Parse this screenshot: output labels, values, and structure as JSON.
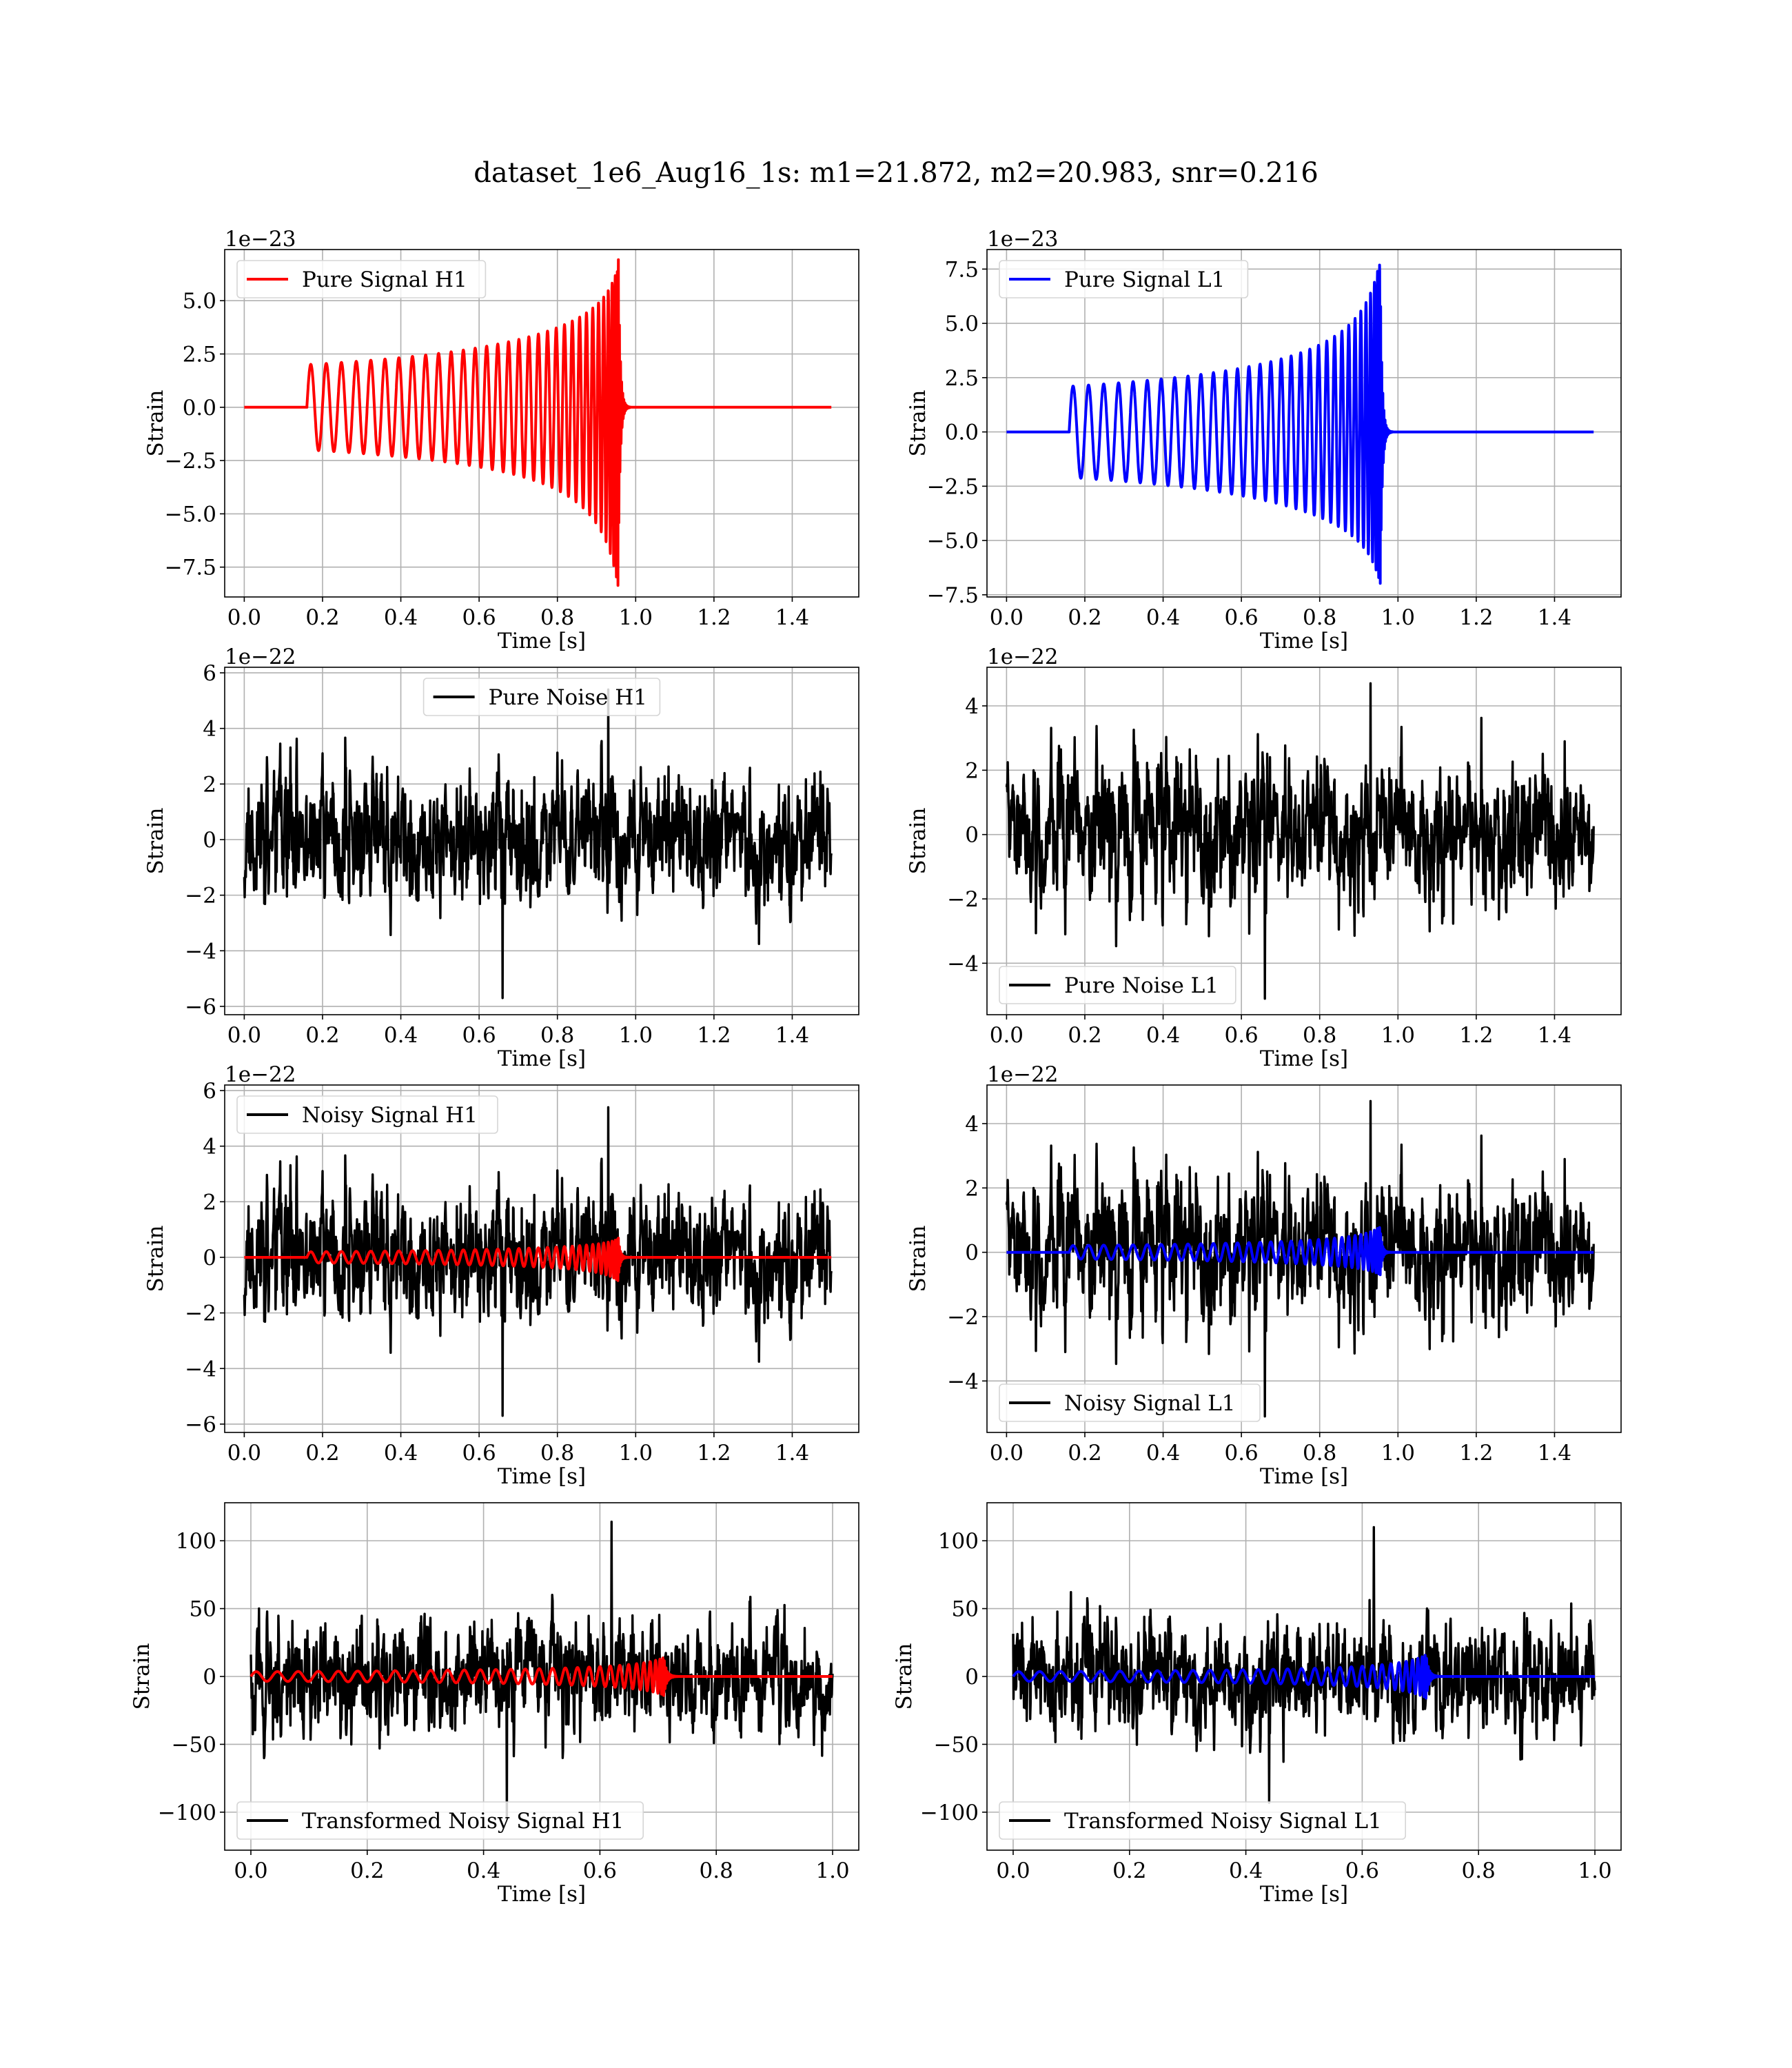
{
  "title": "dataset_1e6_Aug16_1s: m1=21.872, m2=20.983, snr=0.216",
  "colors": {
    "h1": "#ff0000",
    "l1": "#0000ff",
    "noise": "#000000",
    "grid": "#b0b0b0",
    "axes": "#000000"
  },
  "chart_data": [
    {
      "id": "pure-signal-h1",
      "type": "line",
      "xlabel": "Time [s]",
      "ylabel": "Strain",
      "offset": "1e−23",
      "xlim": [
        -0.05,
        1.57
      ],
      "ylim": [
        -8.9,
        7.4
      ],
      "xticks": [
        0.0,
        0.2,
        0.4,
        0.6,
        0.8,
        1.0,
        1.2,
        1.4
      ],
      "xticklabels": [
        "0.0",
        "0.2",
        "0.4",
        "0.6",
        "0.8",
        "1.0",
        "1.2",
        "1.4"
      ],
      "yticks": [
        -7.5,
        -5.0,
        -2.5,
        0.0,
        2.5,
        5.0
      ],
      "yticklabels": [
        "−7.5",
        "−5.0",
        "−2.5",
        "0.0",
        "2.5",
        "5.0"
      ],
      "legend": {
        "loc": "upper-left"
      },
      "grid": true,
      "series": [
        {
          "name": "Pure Signal H1",
          "color": "#ff0000",
          "kind": "chirp",
          "params": {
            "t_start": 0.16,
            "t_merge": 0.955,
            "t_end": 1.5,
            "amp_start": 2.0,
            "amp_peak_pos": 6.6,
            "amp_peak_neg": 8.4,
            "freq_start": 36,
            "cycles": 32
          }
        }
      ]
    },
    {
      "id": "pure-signal-l1",
      "type": "line",
      "xlabel": "Time [s]",
      "ylabel": "Strain",
      "offset": "1e−23",
      "xlim": [
        -0.05,
        1.57
      ],
      "ylim": [
        -7.6,
        8.4
      ],
      "xticks": [
        0.0,
        0.2,
        0.4,
        0.6,
        0.8,
        1.0,
        1.2,
        1.4
      ],
      "xticklabels": [
        "0.0",
        "0.2",
        "0.4",
        "0.6",
        "0.8",
        "1.0",
        "1.2",
        "1.4"
      ],
      "yticks": [
        -7.5,
        -5.0,
        -2.5,
        0.0,
        2.5,
        5.0,
        7.5
      ],
      "yticklabels": [
        "−7.5",
        "−5.0",
        "−2.5",
        "0.0",
        "2.5",
        "5.0",
        "7.5"
      ],
      "legend": {
        "loc": "upper-left"
      },
      "grid": true,
      "series": [
        {
          "name": "Pure Signal L1",
          "color": "#0000ff",
          "kind": "chirp",
          "params": {
            "t_start": 0.16,
            "t_merge": 0.955,
            "t_end": 1.5,
            "amp_start": 2.1,
            "amp_peak_pos": 8.0,
            "amp_peak_neg": 7.0,
            "freq_start": 36,
            "cycles": 32
          }
        }
      ]
    },
    {
      "id": "pure-noise-h1",
      "type": "line",
      "xlabel": "Time [s]",
      "ylabel": "Strain",
      "offset": "1e−22",
      "xlim": [
        -0.05,
        1.57
      ],
      "ylim": [
        -6.3,
        6.2
      ],
      "xticks": [
        0.0,
        0.2,
        0.4,
        0.6,
        0.8,
        1.0,
        1.2,
        1.4
      ],
      "xticklabels": [
        "0.0",
        "0.2",
        "0.4",
        "0.6",
        "0.8",
        "1.0",
        "1.2",
        "1.4"
      ],
      "yticks": [
        -6,
        -4,
        -2,
        0,
        2,
        4,
        6
      ],
      "yticklabels": [
        "−6",
        "−4",
        "−2",
        "0",
        "2",
        "4",
        "6"
      ],
      "legend": {
        "loc": "upper-center"
      },
      "grid": true,
      "series": [
        {
          "name": "Pure Noise H1",
          "color": "#000000",
          "kind": "noise",
          "params": {
            "t_start": 0.0,
            "t_end": 1.5,
            "sigma": 1.6,
            "peak": 5.4,
            "trough": -5.7,
            "seed": 11
          }
        }
      ]
    },
    {
      "id": "pure-noise-l1",
      "type": "line",
      "xlabel": "Time [s]",
      "ylabel": "Strain",
      "offset": "1e−22",
      "xlim": [
        -0.05,
        1.57
      ],
      "ylim": [
        -5.6,
        5.2
      ],
      "xticks": [
        0.0,
        0.2,
        0.4,
        0.6,
        0.8,
        1.0,
        1.2,
        1.4
      ],
      "xticklabels": [
        "0.0",
        "0.2",
        "0.4",
        "0.6",
        "0.8",
        "1.0",
        "1.2",
        "1.4"
      ],
      "yticks": [
        -4,
        -2,
        0,
        2,
        4
      ],
      "yticklabels": [
        "−4",
        "−2",
        "0",
        "2",
        "4"
      ],
      "legend": {
        "loc": "lower-left"
      },
      "grid": true,
      "series": [
        {
          "name": "Pure Noise L1",
          "color": "#000000",
          "kind": "noise",
          "params": {
            "t_start": 0.0,
            "t_end": 1.5,
            "sigma": 1.5,
            "peak": 4.7,
            "trough": -5.1,
            "seed": 23
          }
        }
      ]
    },
    {
      "id": "noisy-signal-h1",
      "type": "line",
      "xlabel": "Time [s]",
      "ylabel": "Strain",
      "offset": "1e−22",
      "xlim": [
        -0.05,
        1.57
      ],
      "ylim": [
        -6.3,
        6.2
      ],
      "xticks": [
        0.0,
        0.2,
        0.4,
        0.6,
        0.8,
        1.0,
        1.2,
        1.4
      ],
      "xticklabels": [
        "0.0",
        "0.2",
        "0.4",
        "0.6",
        "0.8",
        "1.0",
        "1.2",
        "1.4"
      ],
      "yticks": [
        -6,
        -4,
        -2,
        0,
        2,
        4,
        6
      ],
      "yticklabels": [
        "−6",
        "−4",
        "−2",
        "0",
        "2",
        "4",
        "6"
      ],
      "legend": {
        "loc": "upper-left"
      },
      "grid": true,
      "series": [
        {
          "name": "Noisy Signal H1",
          "color": "#000000",
          "kind": "noise",
          "params": {
            "t_start": 0.0,
            "t_end": 1.5,
            "sigma": 1.6,
            "peak": 5.4,
            "trough": -5.7,
            "seed": 11
          }
        },
        {
          "color": "#ff0000",
          "kind": "chirp",
          "params": {
            "t_start": 0.16,
            "t_merge": 0.955,
            "t_end": 1.5,
            "amp_start": 0.2,
            "amp_peak_pos": 0.66,
            "amp_peak_neg": 0.84,
            "freq_start": 36,
            "cycles": 32
          }
        }
      ]
    },
    {
      "id": "noisy-signal-l1",
      "type": "line",
      "xlabel": "Time [s]",
      "ylabel": "Strain",
      "offset": "1e−22",
      "xlim": [
        -0.05,
        1.57
      ],
      "ylim": [
        -5.6,
        5.2
      ],
      "xticks": [
        0.0,
        0.2,
        0.4,
        0.6,
        0.8,
        1.0,
        1.2,
        1.4
      ],
      "xticklabels": [
        "0.0",
        "0.2",
        "0.4",
        "0.6",
        "0.8",
        "1.0",
        "1.2",
        "1.4"
      ],
      "yticks": [
        -4,
        -2,
        0,
        2,
        4
      ],
      "yticklabels": [
        "−4",
        "−2",
        "0",
        "2",
        "4"
      ],
      "legend": {
        "loc": "lower-left"
      },
      "grid": true,
      "series": [
        {
          "name": "Noisy Signal L1",
          "color": "#000000",
          "kind": "noise",
          "params": {
            "t_start": 0.0,
            "t_end": 1.5,
            "sigma": 1.5,
            "peak": 4.7,
            "trough": -5.1,
            "seed": 23
          }
        },
        {
          "color": "#0000ff",
          "kind": "chirp",
          "params": {
            "t_start": 0.16,
            "t_merge": 0.955,
            "t_end": 1.5,
            "amp_start": 0.21,
            "amp_peak_pos": 0.8,
            "amp_peak_neg": 0.7,
            "freq_start": 36,
            "cycles": 32
          }
        }
      ]
    },
    {
      "id": "transformed-noisy-signal-h1",
      "type": "line",
      "xlabel": "Time [s]",
      "ylabel": "Strain",
      "offset": "",
      "xlim": [
        -0.045,
        1.045
      ],
      "ylim": [
        -128,
        128
      ],
      "xticks": [
        0.0,
        0.2,
        0.4,
        0.6,
        0.8,
        1.0
      ],
      "xticklabels": [
        "0.0",
        "0.2",
        "0.4",
        "0.6",
        "0.8",
        "1.0"
      ],
      "yticks": [
        -100,
        -50,
        0,
        50,
        100
      ],
      "yticklabels": [
        "−100",
        "−50",
        "0",
        "50",
        "100"
      ],
      "legend": {
        "loc": "lower-left"
      },
      "grid": true,
      "series": [
        {
          "name": "Transformed Noisy Signal H1",
          "color": "#000000",
          "kind": "noise",
          "params": {
            "t_start": 0.0,
            "t_end": 1.0,
            "sigma": 28,
            "peak": 114,
            "trough": -105,
            "seed": 37
          }
        },
        {
          "color": "#ff0000",
          "kind": "chirp",
          "params": {
            "t_start": 0.0,
            "t_merge": 0.71,
            "t_end": 1.0,
            "amp_start": 3.5,
            "amp_peak_pos": 14,
            "amp_peak_neg": 14,
            "freq_start": 36,
            "cycles": 31
          }
        }
      ]
    },
    {
      "id": "transformed-noisy-signal-l1",
      "type": "line",
      "xlabel": "Time [s]",
      "ylabel": "Strain",
      "offset": "",
      "xlim": [
        -0.045,
        1.045
      ],
      "ylim": [
        -128,
        128
      ],
      "xticks": [
        0.0,
        0.2,
        0.4,
        0.6,
        0.8,
        1.0
      ],
      "xticklabels": [
        "0.0",
        "0.2",
        "0.4",
        "0.6",
        "0.8",
        "1.0"
      ],
      "yticks": [
        -100,
        -50,
        0,
        50,
        100
      ],
      "yticklabels": [
        "−100",
        "−50",
        "0",
        "50",
        "100"
      ],
      "legend": {
        "loc": "lower-left"
      },
      "grid": true,
      "series": [
        {
          "name": "Transformed Noisy Signal L1",
          "color": "#000000",
          "kind": "noise",
          "params": {
            "t_start": 0.0,
            "t_end": 1.0,
            "sigma": 27,
            "peak": 110,
            "trough": -93,
            "seed": 53
          }
        },
        {
          "color": "#0000ff",
          "kind": "chirp",
          "params": {
            "t_start": 0.0,
            "t_merge": 0.71,
            "t_end": 1.0,
            "amp_start": 3.5,
            "amp_peak_pos": 16,
            "amp_peak_neg": 16,
            "freq_start": 36,
            "cycles": 31
          }
        }
      ]
    }
  ]
}
